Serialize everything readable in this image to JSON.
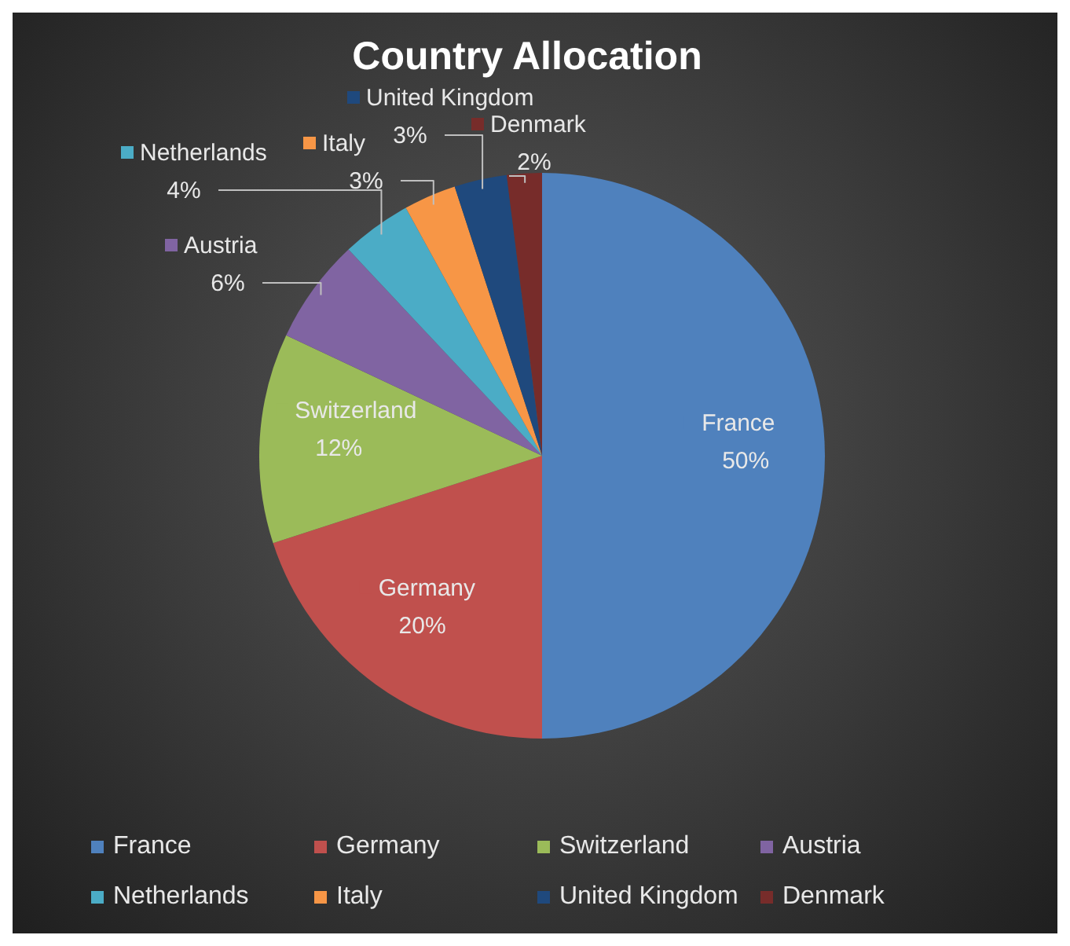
{
  "chart_data": {
    "type": "pie",
    "title": "Country Allocation",
    "categories": [
      "France",
      "Germany",
      "Switzerland",
      "Austria",
      "Netherlands",
      "Italy",
      "United Kingdom",
      "Denmark"
    ],
    "values": [
      50,
      20,
      12,
      6,
      4,
      3,
      3,
      2
    ],
    "value_labels": [
      "50%",
      "20%",
      "12%",
      "6%",
      "4%",
      "3%",
      "3%",
      "2%"
    ],
    "colors": [
      "#4f81bd",
      "#c0504d",
      "#9bbb59",
      "#8064a2",
      "#4bacc6",
      "#f79646",
      "#1f497d",
      "#772c2a"
    ],
    "legend": "bottom"
  }
}
